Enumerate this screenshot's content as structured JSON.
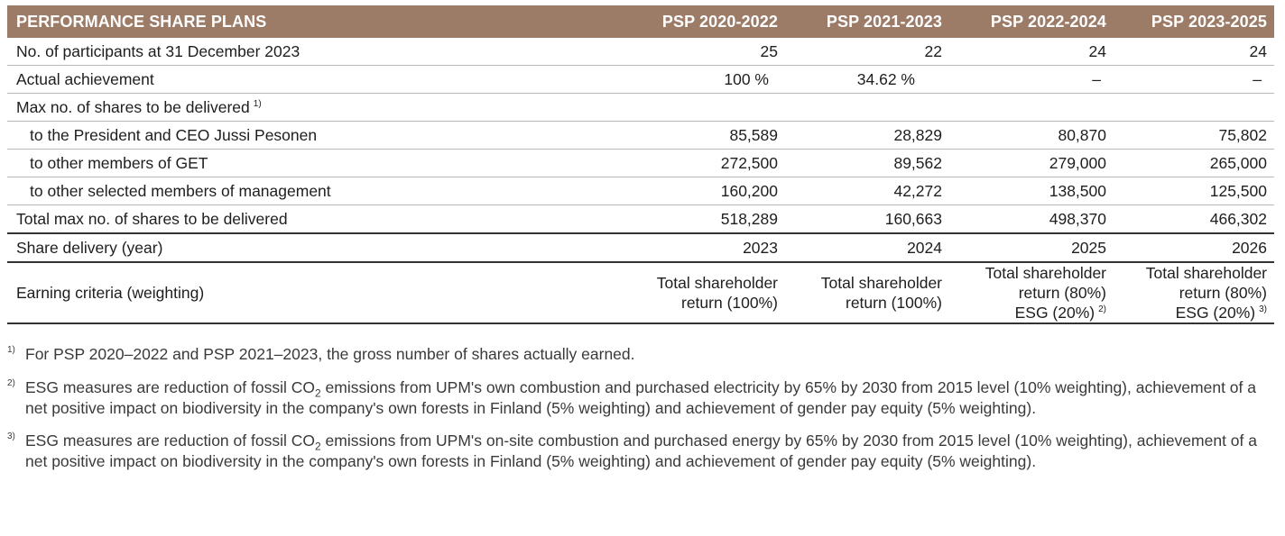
{
  "table": {
    "title": "PERFORMANCE SHARE PLANS",
    "columns": [
      "PSP 2020-2022",
      "PSP 2021-2023",
      "PSP 2022-2024",
      "PSP 2023-2025"
    ],
    "rows": {
      "participants": {
        "label": "No. of participants at 31 December 2023",
        "values": [
          "25",
          "22",
          "24",
          "24"
        ]
      },
      "achievement": {
        "label": "Actual achievement",
        "values": [
          "100 %",
          "34.62 %",
          "–",
          "–"
        ]
      },
      "max_shares": {
        "label": "Max no. of shares to be delivered",
        "footnote": "1)"
      },
      "ceo": {
        "label": "to the President and CEO Jussi Pesonen",
        "values": [
          "85,589",
          "28,829",
          "80,870",
          "75,802"
        ]
      },
      "get": {
        "label": "to other members of GET",
        "values": [
          "272,500",
          "89,562",
          "279,000",
          "265,000"
        ]
      },
      "management": {
        "label": "to other selected members of management",
        "values": [
          "160,200",
          "42,272",
          "138,500",
          "125,500"
        ]
      },
      "total": {
        "label": "Total max no. of shares to be delivered",
        "values": [
          "518,289",
          "160,663",
          "498,370",
          "466,302"
        ]
      },
      "delivery": {
        "label": "Share delivery (year)",
        "values": [
          "2023",
          "2024",
          "2025",
          "2026"
        ]
      },
      "criteria": {
        "label": "Earning criteria (weighting)",
        "c1": {
          "line1": "Total shareholder",
          "line2": "return (100%)"
        },
        "c2": {
          "line1": "Total shareholder",
          "line2": "return (100%)"
        },
        "c3": {
          "line1": "Total shareholder",
          "line2": "return (80%)",
          "line3": "ESG (20%)",
          "footnote": "2)"
        },
        "c4": {
          "line1": "Total shareholder",
          "line2": "return (80%)",
          "line3": "ESG (20%)",
          "footnote": "3)"
        }
      }
    }
  },
  "footnotes": [
    {
      "mark": "1)",
      "text": "For PSP 2020–2022 and PSP 2021–2023, the gross number of shares actually earned."
    },
    {
      "mark": "2)",
      "text_before": "ESG measures are reduction of fossil CO",
      "subscript": "2",
      "text_after": " emissions from UPM's own combustion and purchased electricity by 65% by 2030 from 2015 level (10% weighting), achievement of a net positive impact on biodiversity in the company's own forests in Finland (5% weighting) and achievement of gender pay equity (5% weighting)."
    },
    {
      "mark": "3)",
      "text_before": "ESG measures are reduction of fossil CO",
      "subscript": "2",
      "text_after": " emissions from UPM's on-site combustion and purchased energy by 65% by 2030 from 2015 level (10% weighting), achievement of a net positive impact on biodiversity in the company's own forests in Finland (5% weighting) and achievement of gender pay equity (5% weighting)."
    }
  ],
  "colors": {
    "header_bg": "#9c7b67",
    "header_text": "#ffffff",
    "rule_dark": "#333333",
    "rule_light": "#b8b8b8"
  }
}
